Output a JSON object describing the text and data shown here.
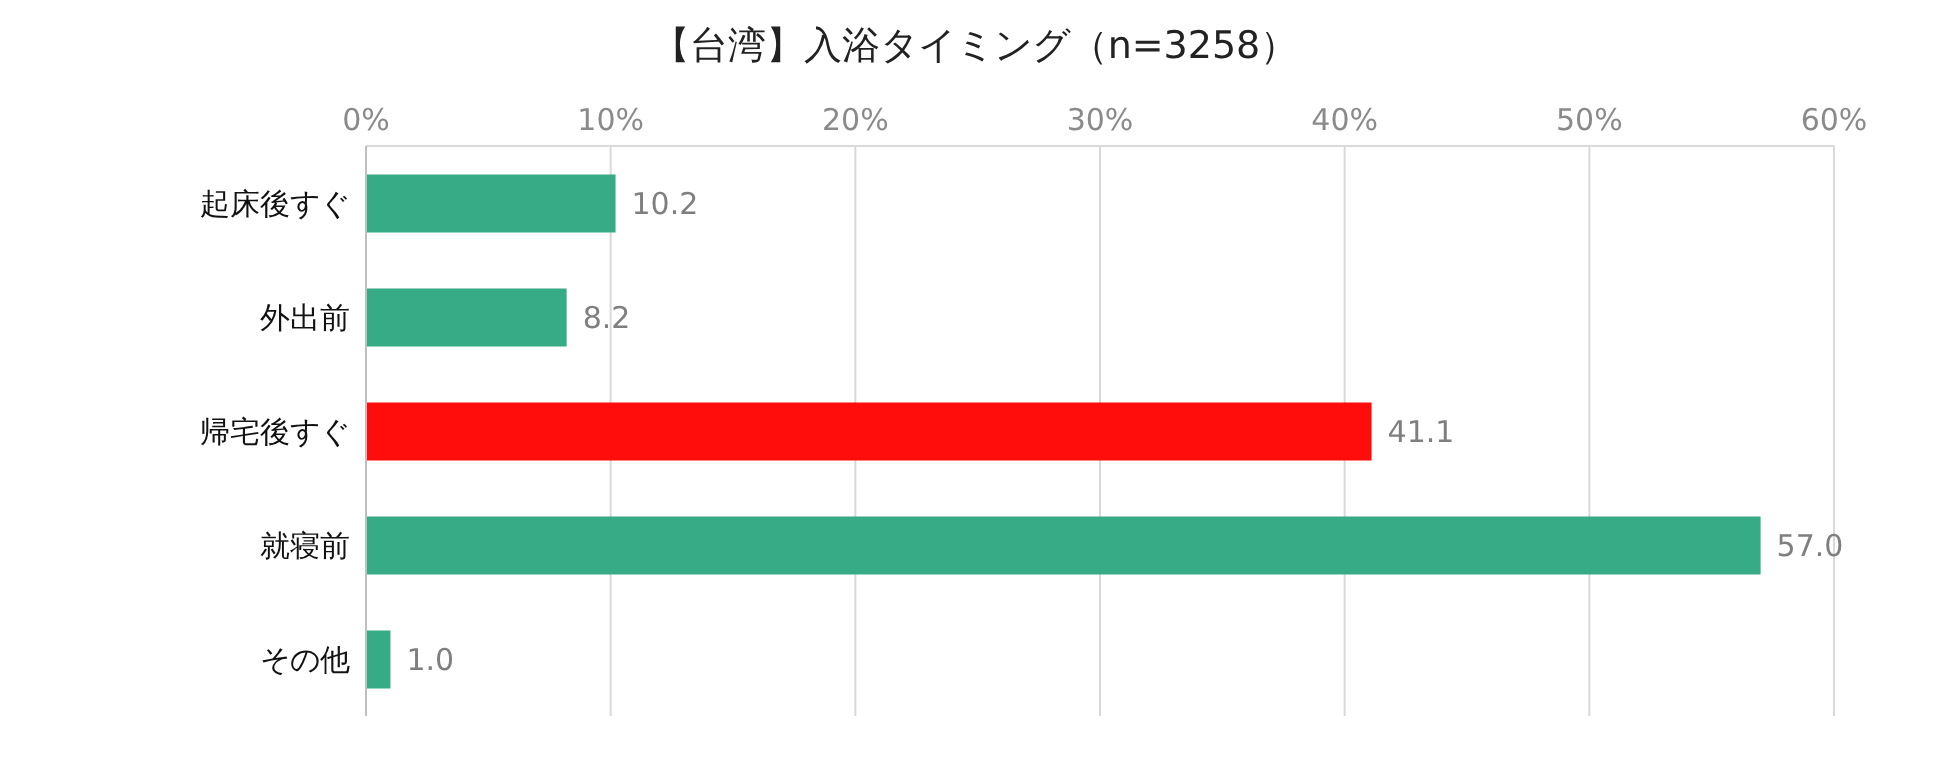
{
  "chart_data": {
    "type": "bar",
    "orientation": "horizontal",
    "title": "【台湾】入浴タイミング（n=3258）",
    "categories": [
      "起床後すぐ",
      "外出前",
      "帰宅後すぐ",
      "就寝前",
      "その他"
    ],
    "values": [
      10.2,
      8.2,
      41.1,
      57.0,
      1.0
    ],
    "colors": [
      "#36ab85",
      "#36ab85",
      "#ff0d0d",
      "#36ab85",
      "#36ab85"
    ],
    "value_labels": [
      "10.2",
      "8.2",
      "41.1",
      "57.0",
      "1.0"
    ],
    "xlim": [
      0,
      60
    ],
    "xticks": [
      {
        "value": 0,
        "label": "0%"
      },
      {
        "value": 10,
        "label": "10%"
      },
      {
        "value": 20,
        "label": "20%"
      },
      {
        "value": 30,
        "label": "30%"
      },
      {
        "value": 40,
        "label": "40%"
      },
      {
        "value": 50,
        "label": "50%"
      },
      {
        "value": 60,
        "label": "60%"
      }
    ],
    "grid": "x"
  }
}
